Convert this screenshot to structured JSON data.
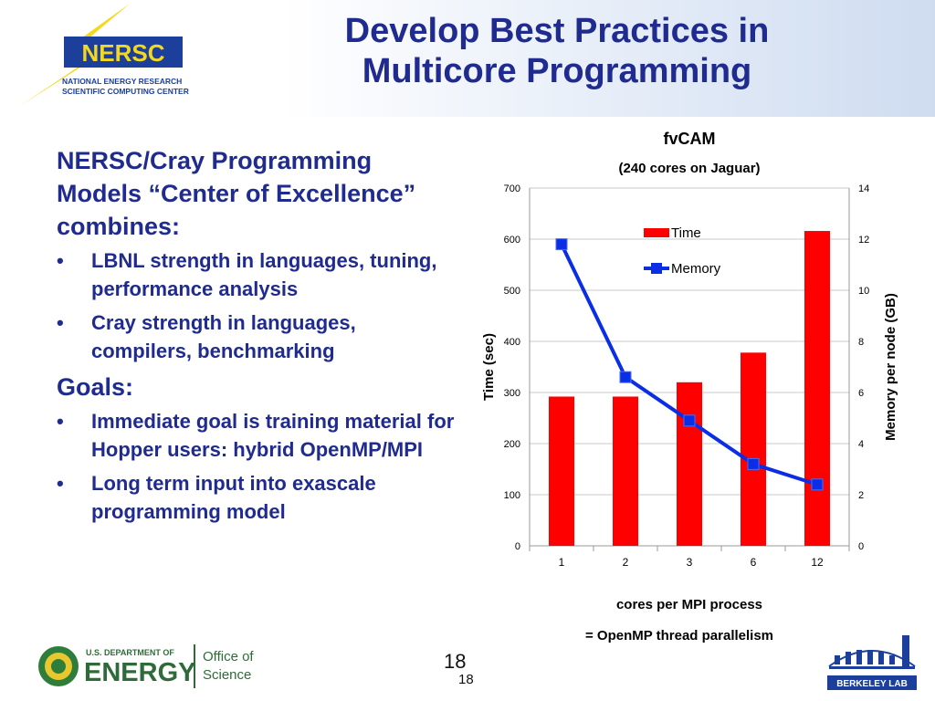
{
  "header": {
    "title_line1": "Develop Best Practices in",
    "title_line2": "Multicore Programming",
    "logo": {
      "name": "NERSC",
      "line1": "NATIONAL ENERGY RESEARCH",
      "line2": "SCIENTIFIC COMPUTING CENTER"
    }
  },
  "body": {
    "lead": "NERSC/Cray Programming Models “Center of Excellence” combines:",
    "bullets1": [
      "LBNL strength in languages, tuning, performance analysis",
      "Cray strength in languages, compilers, benchmarking"
    ],
    "goals_heading": "Goals:",
    "bullets2": [
      "Immediate goal is training material for Hopper users: hybrid OpenMP/MPI",
      "Long term input into exascale programming model"
    ],
    "bullet_glyph": "•"
  },
  "chart_data": {
    "type": "bar",
    "title": "fvCAM",
    "subtitle": "(240 cores on Jaguar)",
    "categories": [
      "1",
      "2",
      "3",
      "6",
      "12"
    ],
    "series": [
      {
        "name": "Time",
        "type": "bar",
        "axis": "left",
        "color": "#ff0000",
        "values": [
          292,
          292,
          320,
          378,
          616
        ]
      },
      {
        "name": "Memory",
        "type": "line",
        "axis": "right",
        "color": "#0a2ee6",
        "values": [
          11.8,
          6.6,
          4.9,
          3.2,
          2.4
        ]
      }
    ],
    "ylabel": "Time (sec)",
    "ylim": [
      0,
      700
    ],
    "yticks": [
      0,
      100,
      200,
      300,
      400,
      500,
      600,
      700
    ],
    "y2label": "Memory per node (GB)",
    "y2lim": [
      0,
      14
    ],
    "y2ticks": [
      0,
      2,
      4,
      6,
      8,
      10,
      12,
      14
    ],
    "xlabel": "cores per MPI process",
    "xlabel2": "= OpenMP thread parallelism",
    "grid": true,
    "legend": "top-center"
  },
  "footer": {
    "page_number": "18",
    "page_number_small": "18",
    "doe_dept": "U.S. DEPARTMENT OF",
    "doe_energy": "ENERGY",
    "office_line1": "Office of",
    "office_line2": "Science",
    "berkeley": "BERKELEY LAB"
  },
  "colors": {
    "title_blue": "#1f2b8f",
    "nersc_yellow": "#f4d81c",
    "nersc_blue": "#1b3f9b"
  }
}
